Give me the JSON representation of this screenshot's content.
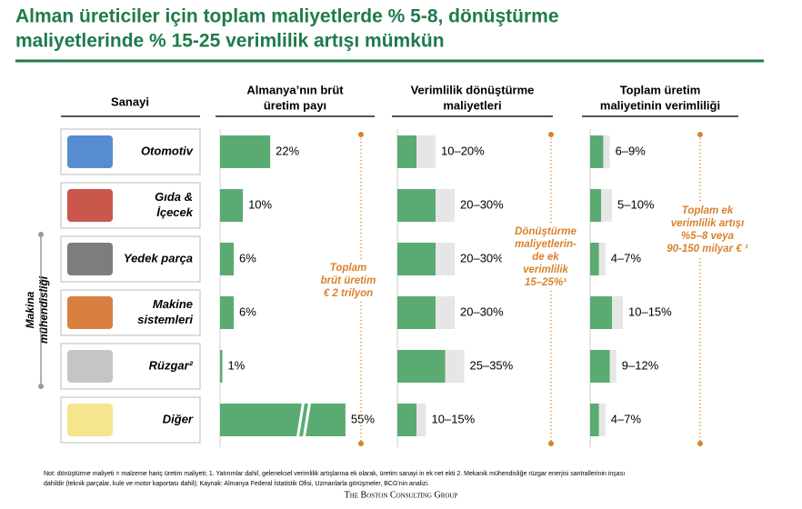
{
  "title": [
    "Alman üreticiler için toplam maliyetlerde % 5-8, dönüştürme",
    "maliyetlerinde % 15-25 verimlilik artışı mümkün"
  ],
  "row_header": "Sanayi",
  "industries": [
    [
      "Otomotiv"
    ],
    [
      "Gıda &",
      "İçecek"
    ],
    [
      "Yedek parça"
    ],
    [
      "Makine",
      "sistemleri"
    ],
    [
      "Rüzgar²"
    ],
    [
      "Diğer"
    ]
  ],
  "group_label": [
    "Makina",
    "mühendisliği"
  ],
  "chart_data": [
    {
      "type": "bar",
      "title": [
        "Almanya’nın brüt",
        "üretim payı"
      ],
      "values": [
        22,
        10,
        6,
        6,
        1,
        55
      ],
      "value_labels": [
        "22%",
        "10%",
        "6%",
        "6%",
        "1%",
        "55%"
      ],
      "xlim": [
        0,
        67
      ],
      "color": "#5aab72",
      "annotation": [
        "Toplam",
        "brüt üretim",
        "€ 2 trilyon"
      ]
    },
    {
      "type": "range",
      "title": [
        "Verimlilik dönüştürme",
        "maliyetleri"
      ],
      "low": [
        10,
        20,
        20,
        20,
        25,
        10
      ],
      "high": [
        20,
        30,
        30,
        30,
        35,
        15
      ],
      "value_labels": [
        "10–20%",
        "20–30%",
        "20–30%",
        "20–30%",
        "25–35%",
        "10–15%"
      ],
      "xlim": [
        0,
        40
      ],
      "color": "#5aab72",
      "range_color": "#e6e6e6",
      "annotation": [
        "Dönüştürme",
        "maliyetlerin-",
        "de ek",
        "verimlilik",
        "15–25%¹"
      ]
    },
    {
      "type": "range",
      "title": [
        "Toplam üretim",
        "maliyetinin verimliliği"
      ],
      "low": [
        6,
        5,
        4,
        10,
        9,
        4
      ],
      "high": [
        9,
        10,
        7,
        15,
        12,
        7
      ],
      "value_labels": [
        "6–9%",
        "5–10%",
        "4–7%",
        "10–15%",
        "9–12%",
        "4–7%"
      ],
      "xlim": [
        0,
        35
      ],
      "color": "#5aab72",
      "range_color": "#e6e6e6",
      "annotation": [
        "Toplam ek",
        "verimlilik artışı",
        "%5–8 veya",
        "90-150 milyar € ¹"
      ]
    }
  ],
  "footnote": [
    "Not: dönüştürme maliyeti = malzeme hariç üretim maliyeti; 1. Yatırımlar dahil, geleneksel verimlilik artışlarına ek olarak, üretim sanayi in ek net ekti 2. Mekanik mühendisliğe rüzgar enerjisi santrallerinin inşası",
    "dahildir (teknik parçalar, kule ve motor kaportası dahil);  Kaynak: Almanya Federal İstatistik Ofisi, Uzmanlarla görüşmeler, BCG'nin analizi."
  ],
  "logo": "The Boston Consulting Group"
}
